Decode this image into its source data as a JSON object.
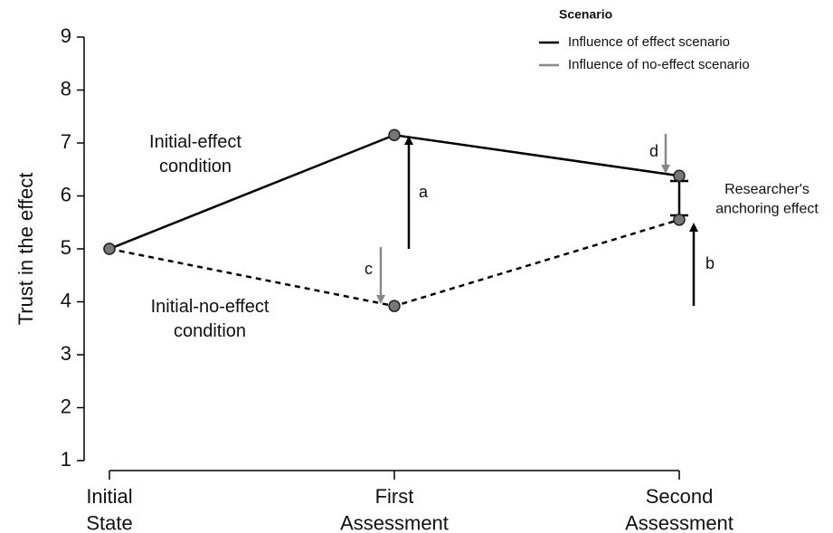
{
  "chart_data": {
    "type": "line",
    "y_label": "Trust in the effect",
    "categories": [
      "Initial\nState",
      "First\nAssessment",
      "Second\nAssessment"
    ],
    "series": [
      {
        "name": "Initial-effect\ncondition",
        "color": "#000000",
        "line_style": "solid",
        "values": [
          5,
          7.15,
          6.38
        ]
      },
      {
        "name": "Initial-no-effect\ncondition",
        "color": "#000000",
        "line_style": "dashed",
        "values": [
          5,
          3.92,
          5.55
        ]
      }
    ],
    "ylim": [
      1,
      9
    ],
    "yticks": [
      1,
      2,
      3,
      4,
      5,
      6,
      7,
      8,
      9
    ],
    "legend": {
      "title": "Scenario",
      "entries": [
        {
          "label": "Influence of effect scenario",
          "color": "#000000"
        },
        {
          "label": "Influence of no-effect scenario",
          "color": "#888888"
        }
      ]
    },
    "annotations": {
      "a": "a",
      "b": "b",
      "c": "c",
      "d": "d",
      "anchoring": "Researcher's\nanchoring effect"
    }
  }
}
